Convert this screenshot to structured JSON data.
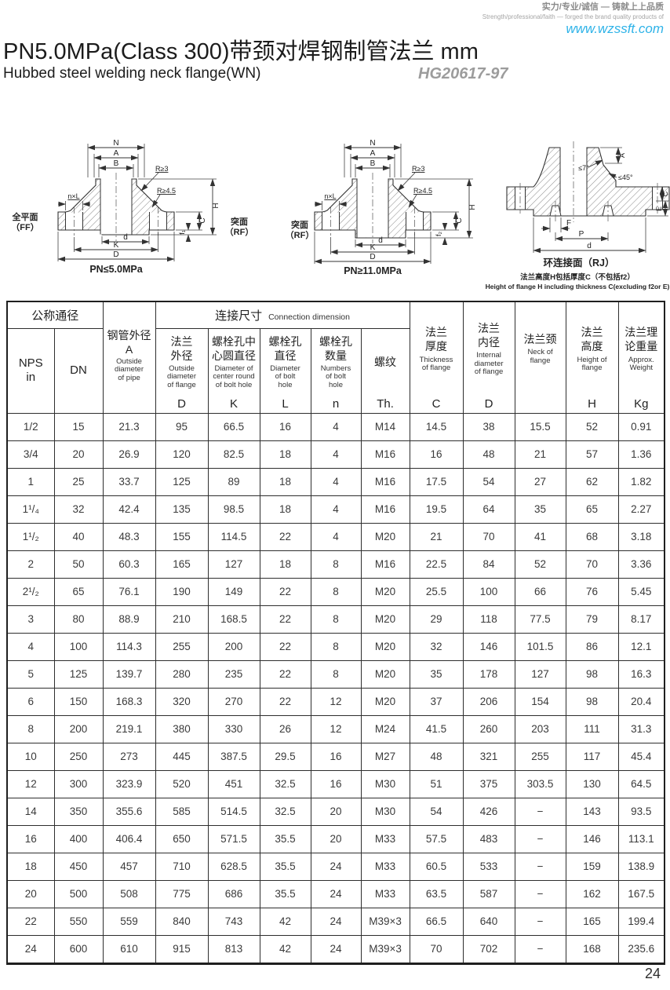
{
  "page": {
    "tagline_cn": "实力/专业/诚信 — 铸就上上品质",
    "tagline_en": "Strength/professional/faith — forged the brand quality products of",
    "website": "www.wzssft.com",
    "title": "PN5.0MPa(Class 300)带颈对焊钢制管法兰  mm",
    "subtitle": "Hubbed steel welding neck flange(WN)",
    "standard": "HG20617-97",
    "page_number": "24"
  },
  "drawing1": {
    "caption": "PN≤5.0MPa",
    "face_left_cn": "全平面",
    "face_left_en": "（FF）",
    "face_right_cn": "突面",
    "face_right_en": "（RF）",
    "dims": {
      "n": "N",
      "a": "A",
      "b": "B",
      "r_top": "R≥3",
      "r_bottom": "R≥4.5",
      "bolt": "n×L",
      "h": "H",
      "c": "C",
      "f": "f₁",
      "d_face": "d",
      "k": "K",
      "d_out": "D"
    }
  },
  "drawing2": {
    "caption": "PN≥11.0MPa",
    "face_left_cn": "突面",
    "face_left_en": "（RF）",
    "dims": {
      "n": "N",
      "a": "A",
      "b": "B",
      "r_top": "R≥3",
      "r_bottom": "R≥4.5",
      "bolt": "n×L",
      "h": "H",
      "c": "C",
      "f": "f₂",
      "d_face": "d",
      "k": "K",
      "d_out": "D"
    }
  },
  "drawing3": {
    "caption": "环连接面（RJ）",
    "note_cn": "法兰高度H包括厚度C（不包括f2）",
    "note_en": "Height of flange H including thickness C(excluding f2or E)",
    "dims": {
      "angle_top": "≤7°",
      "angle_bottom": "≤45°",
      "a": "A",
      "c": "C",
      "e": "E",
      "f": "F",
      "p": "P",
      "d": "d"
    }
  },
  "table": {
    "header": {
      "nominal_group": "公称通径",
      "nps": "NPS\nin",
      "dn": "DN",
      "pipe_od": {
        "cn": "钢管外径",
        "sym": "A",
        "en": "Outside\ndiameter\nof pipe"
      },
      "connection_cn": "连接尺寸",
      "connection_en": "Connection dimension",
      "flange_od": {
        "cn": "法兰\n外径",
        "en": "Outside\ndiameter\nof flange",
        "sym": "D"
      },
      "bolt_circle": {
        "cn": "螺栓孔中\n心圆直径",
        "en": "Diameter of\ncenter round\nof bolt hole",
        "sym": "K"
      },
      "bolt_hole": {
        "cn": "螺栓孔\n直径",
        "en": "Diameter\nof bolt\nhole",
        "sym": "L"
      },
      "bolt_num": {
        "cn": "螺栓孔\n数量",
        "en": "Numbers\nof bolt\nhole",
        "sym": "n"
      },
      "thread": {
        "cn": "螺纹",
        "en": "",
        "sym": "Th."
      },
      "thickness": {
        "cn": "法兰\n厚度",
        "en": "Thickness\nof flange",
        "sym": "C"
      },
      "inner_d": {
        "cn": "法兰\n内径",
        "en": "Internal\ndiameter\nof flange",
        "sym": "D"
      },
      "neck": {
        "cn": "法兰颈",
        "en": "Neck of\nflange",
        "sym": ""
      },
      "height": {
        "cn": "法兰\n高度",
        "en": "Height of\nflange",
        "sym": "H"
      },
      "weight": {
        "cn": "法兰理\n论重量",
        "en": "Approx.\nWeight",
        "sym": "Kg"
      }
    },
    "rows": [
      [
        "1/2",
        "15",
        "21.3",
        "95",
        "66.5",
        "16",
        "4",
        "M14",
        "14.5",
        "38",
        "15.5",
        "52",
        "0.91"
      ],
      [
        "3/4",
        "20",
        "26.9",
        "120",
        "82.5",
        "18",
        "4",
        "M16",
        "16",
        "48",
        "21",
        "57",
        "1.36"
      ],
      [
        "1",
        "25",
        "33.7",
        "125",
        "89",
        "18",
        "4",
        "M16",
        "17.5",
        "54",
        "27",
        "62",
        "1.82"
      ],
      [
        "1¹/₄",
        "32",
        "42.4",
        "135",
        "98.5",
        "18",
        "4",
        "M16",
        "19.5",
        "64",
        "35",
        "65",
        "2.27"
      ],
      [
        "1¹/₂",
        "40",
        "48.3",
        "155",
        "114.5",
        "22",
        "4",
        "M20",
        "21",
        "70",
        "41",
        "68",
        "3.18"
      ],
      [
        "2",
        "50",
        "60.3",
        "165",
        "127",
        "18",
        "8",
        "M16",
        "22.5",
        "84",
        "52",
        "70",
        "3.36"
      ],
      [
        "2¹/₂",
        "65",
        "76.1",
        "190",
        "149",
        "22",
        "8",
        "M20",
        "25.5",
        "100",
        "66",
        "76",
        "5.45"
      ],
      [
        "3",
        "80",
        "88.9",
        "210",
        "168.5",
        "22",
        "8",
        "M20",
        "29",
        "118",
        "77.5",
        "79",
        "8.17"
      ],
      [
        "4",
        "100",
        "114.3",
        "255",
        "200",
        "22",
        "8",
        "M20",
        "32",
        "146",
        "101.5",
        "86",
        "12.1"
      ],
      [
        "5",
        "125",
        "139.7",
        "280",
        "235",
        "22",
        "8",
        "M20",
        "35",
        "178",
        "127",
        "98",
        "16.3"
      ],
      [
        "6",
        "150",
        "168.3",
        "320",
        "270",
        "22",
        "12",
        "M20",
        "37",
        "206",
        "154",
        "98",
        "20.4"
      ],
      [
        "8",
        "200",
        "219.1",
        "380",
        "330",
        "26",
        "12",
        "M24",
        "41.5",
        "260",
        "203",
        "111",
        "31.3"
      ],
      [
        "10",
        "250",
        "273",
        "445",
        "387.5",
        "29.5",
        "16",
        "M27",
        "48",
        "321",
        "255",
        "117",
        "45.4"
      ],
      [
        "12",
        "300",
        "323.9",
        "520",
        "451",
        "32.5",
        "16",
        "M30",
        "51",
        "375",
        "303.5",
        "130",
        "64.5"
      ],
      [
        "14",
        "350",
        "355.6",
        "585",
        "514.5",
        "32.5",
        "20",
        "M30",
        "54",
        "426",
        "−",
        "143",
        "93.5"
      ],
      [
        "16",
        "400",
        "406.4",
        "650",
        "571.5",
        "35.5",
        "20",
        "M33",
        "57.5",
        "483",
        "−",
        "146",
        "113.1"
      ],
      [
        "18",
        "450",
        "457",
        "710",
        "628.5",
        "35.5",
        "24",
        "M33",
        "60.5",
        "533",
        "−",
        "159",
        "138.9"
      ],
      [
        "20",
        "500",
        "508",
        "775",
        "686",
        "35.5",
        "24",
        "M33",
        "63.5",
        "587",
        "−",
        "162",
        "167.5"
      ],
      [
        "22",
        "550",
        "559",
        "840",
        "743",
        "42",
        "24",
        "M39×3",
        "66.5",
        "640",
        "−",
        "165",
        "199.4"
      ],
      [
        "24",
        "600",
        "610",
        "915",
        "813",
        "42",
        "24",
        "M39×3",
        "70",
        "702",
        "−",
        "168",
        "235.6"
      ]
    ]
  }
}
